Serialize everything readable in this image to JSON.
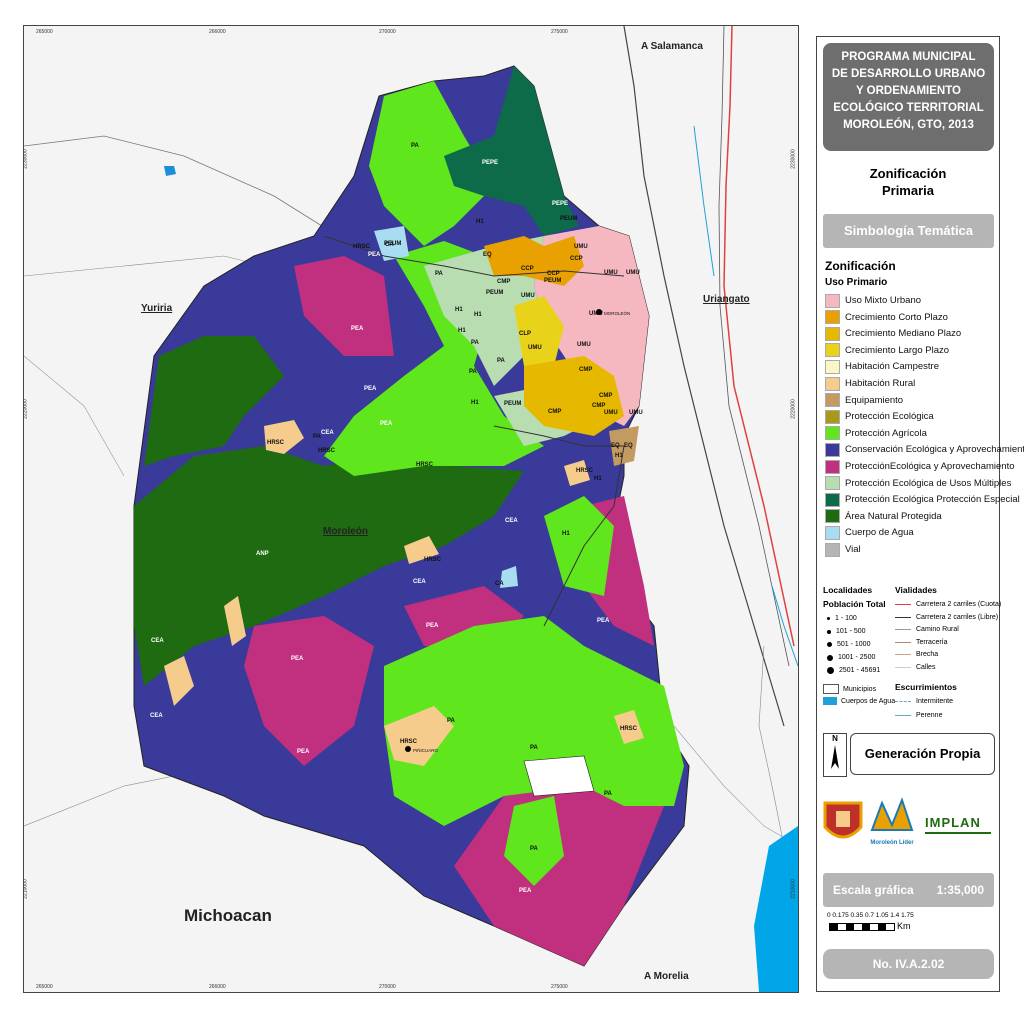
{
  "map": {
    "top_labels": [
      "265000",
      "266000",
      "270000",
      "275000"
    ],
    "bottom_labels": [
      "265000",
      "266000",
      "270000",
      "275000"
    ],
    "left_labels": [
      "2230000",
      "2220000",
      "2210000"
    ],
    "right_labels": [
      "2230000",
      "2220000",
      "2210000"
    ],
    "places": {
      "salamanca": "A Salamanca",
      "yuriria": "Yuriria",
      "uriangato": "Uriangato",
      "moroleon": "Moroleón",
      "michoacan": "Michoacan",
      "morelia": "A Morelia"
    },
    "zone_labels": [
      "PA",
      "PEPE",
      "PEPE",
      "PEUM",
      "H1",
      "PEUM",
      "UMU",
      "CA",
      "HRSC",
      "PEA",
      "PA",
      "EQ",
      "CCP",
      "CCP",
      "CCP",
      "UMU",
      "UMU",
      "PEUM",
      "CMP",
      "PEUM",
      "UMU",
      "UMU",
      "H1",
      "H1",
      "CLP",
      "UMU",
      "UMU",
      "PEA",
      "H1",
      "PA",
      "PA",
      "H1",
      "PA",
      "CMP",
      "UMU",
      "CMP",
      "PEA",
      "PEA",
      "CEA",
      "PEUM",
      "CMP",
      "CMP",
      "UMU",
      "HRSC",
      "PA",
      "HRSC",
      "HRSC",
      "EQ",
      "EQ",
      "H1",
      "HRSC",
      "H1",
      "CEA",
      "H1",
      "ANP",
      "HRSC",
      "CEA",
      "CA",
      "CEA",
      "PEA",
      "PEA",
      "PEA",
      "PA",
      "CEA",
      "PEA",
      "HRSC",
      "PA",
      "HRSC",
      "PA",
      "PA",
      "PEA"
    ],
    "localities": [
      "MOROLEÓN",
      "PIÑICUARO"
    ]
  },
  "panel": {
    "title_lines": [
      "PROGRAMA MUNICIPAL",
      "DE DESARROLLO URBANO",
      "Y ORDENAMIENTO",
      "ECOLÓGICO TERRITORIAL",
      "MOROLEÓN, GTO, 2013"
    ],
    "zonificacion_title": [
      "Zonificación",
      "Primaria"
    ],
    "simbologia": "Simbología Temática",
    "zonificacion_head": "Zonificación",
    "uso_primario": "Uso Primario",
    "legend": [
      {
        "label": "Uso Mixto Urbano",
        "color": "#f5b8c0"
      },
      {
        "label": "Crecimiento Corto Plazo",
        "color": "#e8a100"
      },
      {
        "label": "Crecimiento Mediano Plazo",
        "color": "#e6b800"
      },
      {
        "label": "Crecimiento Largo Plazo",
        "color": "#e9d21a"
      },
      {
        "label": "Habitación Campestre",
        "color": "#fbf6c6"
      },
      {
        "label": "Habitación Rural",
        "color": "#f5cc8c"
      },
      {
        "label": "Equipamiento",
        "color": "#c49a63"
      },
      {
        "label": "Protección Ecológica",
        "color": "#a89a16"
      },
      {
        "label": "Protección Agrícola",
        "color": "#5fe61c"
      },
      {
        "label": "Conservación Ecológica y Aprovechamiento",
        "color": "#3a3a9a"
      },
      {
        "label": "ProtecciónEcológica y Aprovechamiento",
        "color": "#c0307f"
      },
      {
        "label": "Protección Ecológica de Usos Múltiples",
        "color": "#b7ddb0"
      },
      {
        "label": "Protección Ecológica Protección Especial",
        "color": "#0d6b49"
      },
      {
        "label": "Área Natural Protegida",
        "color": "#1e6b12"
      },
      {
        "label": "Cuerpo de Agua",
        "color": "#a8dcf0"
      },
      {
        "label": "Vial",
        "color": "#b5b5b5"
      }
    ],
    "localidades_head": "Localidades",
    "poblacion_head": "Población Total",
    "poblacion": [
      "1 - 100",
      "101 - 500",
      "501 - 1000",
      "1001 - 2500",
      "2501 - 45691"
    ],
    "municipios": "Municipios",
    "cuerpos_agua": "Cuerpos de Agua",
    "vialidades_head": "Vialidades",
    "vialidades": [
      {
        "label": "Carretera 2 carriles (Cuota)",
        "color": "#e04040"
      },
      {
        "label": "Carretera 2 carriles (Libre)",
        "color": "#333333"
      },
      {
        "label": "Camino Rural",
        "color": "#999999"
      },
      {
        "label": "Terracería",
        "color": "#b08a6a"
      },
      {
        "label": "Brecha",
        "color": "#d0a080"
      },
      {
        "label": "Calles",
        "color": "#cccccc"
      }
    ],
    "escurrimientos_head": "Escurrimientos",
    "escurrimientos": [
      "Intermitente",
      "Perenne"
    ],
    "north": "N",
    "generacion": "Generación Propia",
    "escala_label": "Escala gráfica",
    "escala_value": "1:35,000",
    "scale_ticks": "0 0.175 0.35 0.7 1.05 1.4 1.75",
    "scale_unit": "Km",
    "plate": "No. IV.A.2.02",
    "logo_implan": "IMPLAN",
    "logo_lider": "Moroleón Líder"
  }
}
